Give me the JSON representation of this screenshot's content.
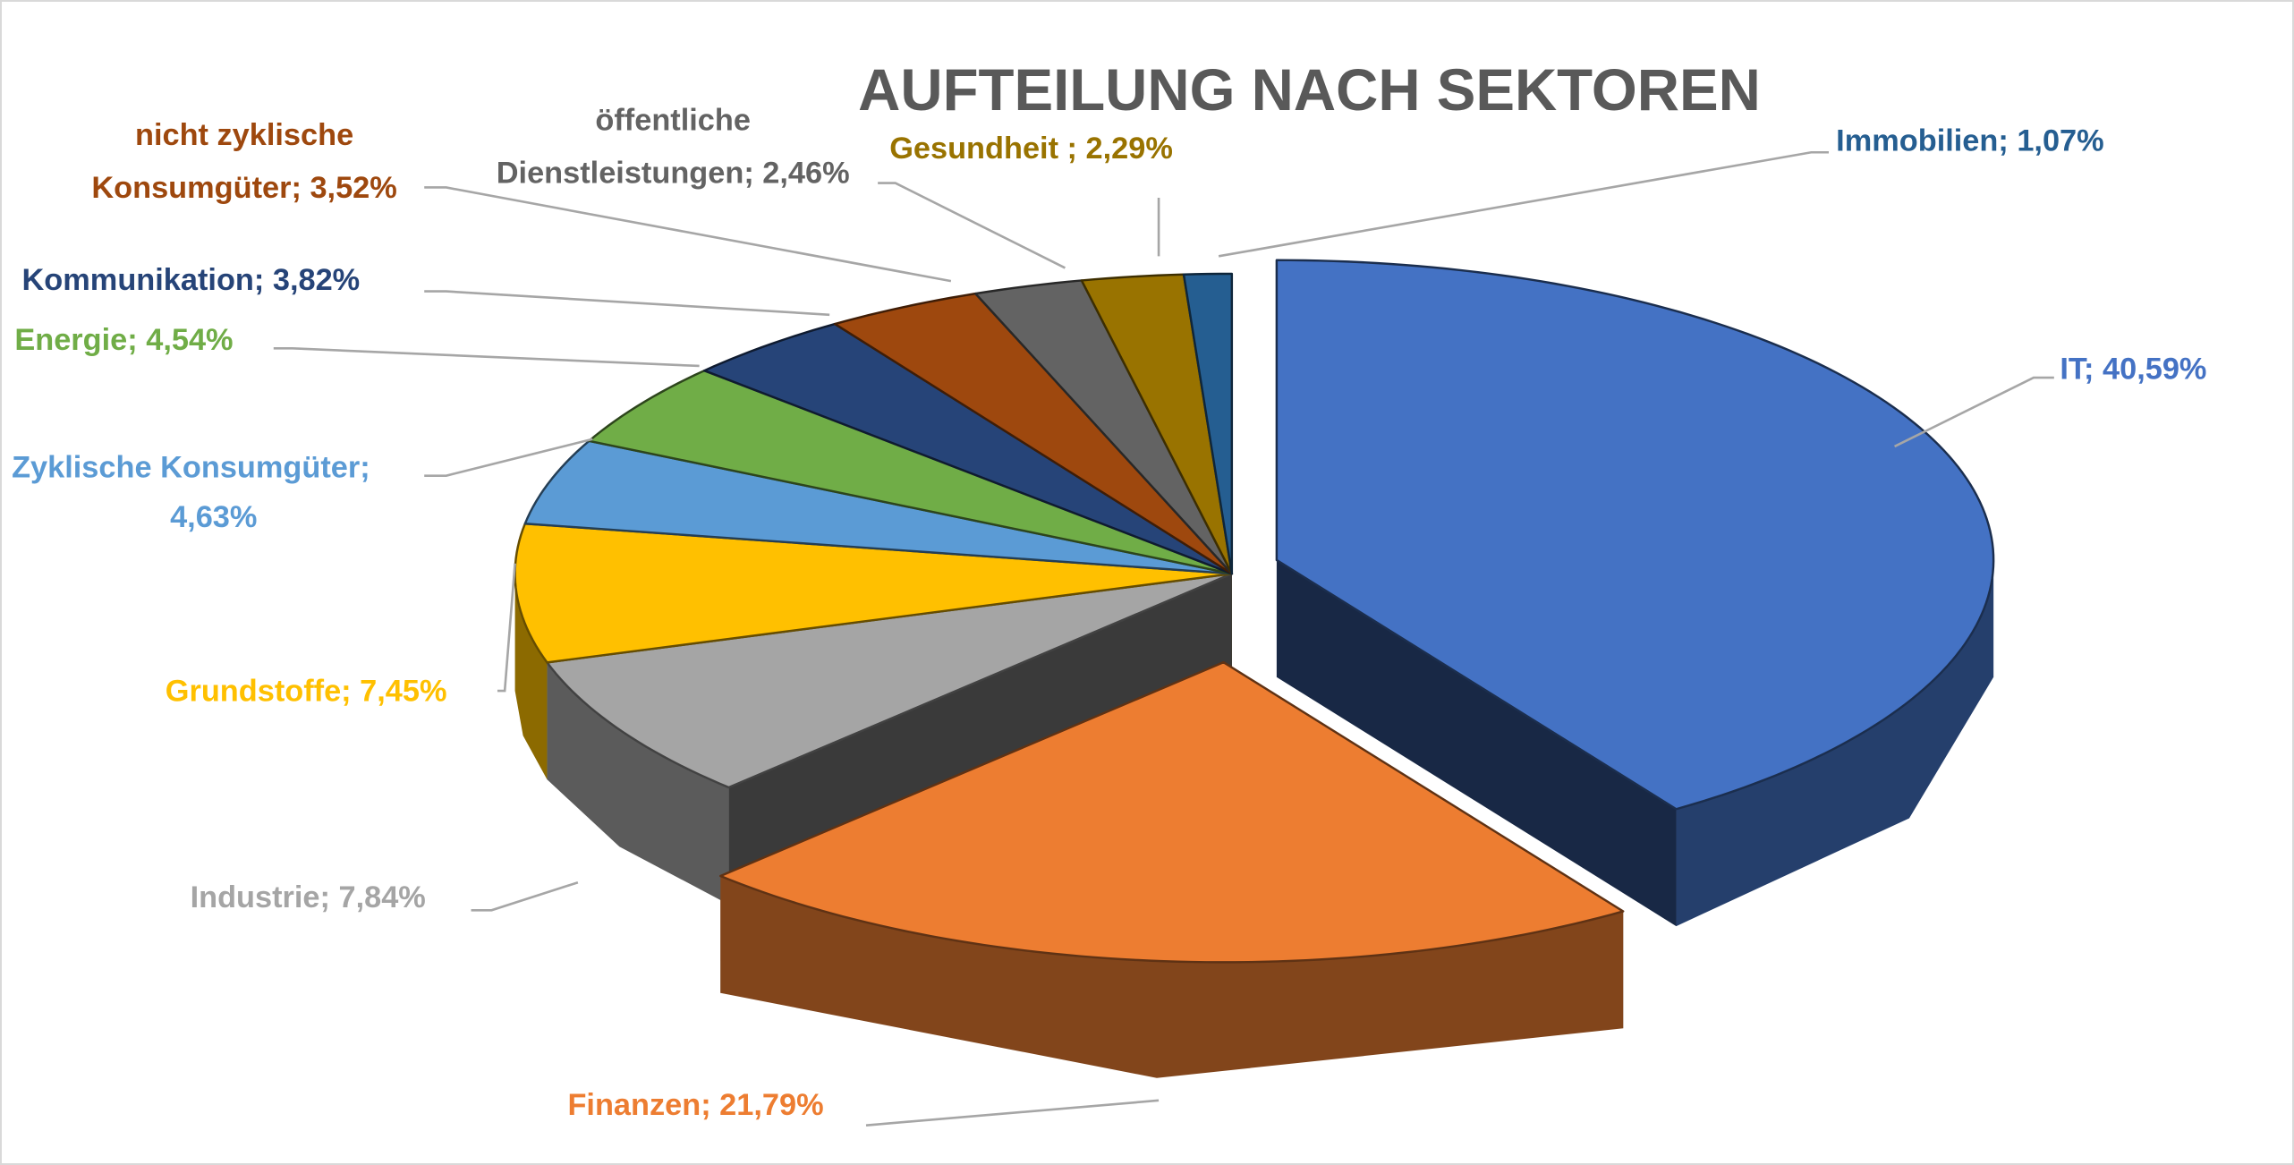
{
  "chart_data": {
    "type": "pie",
    "style": "3d-exploded",
    "title": "AUFTEILUNG NACH SEKTOREN",
    "start": "top",
    "direction": "clockwise",
    "title_color": "#595959",
    "slices": [
      {
        "label": "IT",
        "value": 40.59,
        "text": "IT; 40,59%",
        "color": "#4472C4",
        "exploded": true
      },
      {
        "label": "Finanzen",
        "value": 21.79,
        "text": "Finanzen; 21,79%",
        "color": "#ED7D31",
        "exploded": true
      },
      {
        "label": "Industrie",
        "value": 7.84,
        "text": "Industrie; 7,84%",
        "color": "#A5A5A5",
        "exploded": false
      },
      {
        "label": "Grundstoffe",
        "value": 7.45,
        "text": "Grundstoffe; 7,45%",
        "color": "#FFC000",
        "exploded": false
      },
      {
        "label": "Zyklische Konsumgüter",
        "value": 4.63,
        "text": "Zyklische Konsumgüter;",
        "text2": "4,63%",
        "color": "#5B9BD5",
        "exploded": false
      },
      {
        "label": "Energie",
        "value": 4.54,
        "text": "Energie; 4,54%",
        "color": "#70AD47",
        "exploded": false
      },
      {
        "label": "Kommunikation",
        "value": 3.82,
        "text": "Kommunikation; 3,82%",
        "color": "#264478",
        "exploded": false
      },
      {
        "label": "nicht zyklische Konsumgüter",
        "value": 3.52,
        "text": "nicht zyklische",
        "text2": "Konsumgüter; 3,52%",
        "color": "#9E480E",
        "exploded": false
      },
      {
        "label": "öffentliche Dienstleistungen",
        "value": 2.46,
        "text": "öffentliche",
        "text2": "Dienstleistungen; 2,46%",
        "color": "#636363",
        "exploded": false
      },
      {
        "label": "Gesundheit",
        "value": 2.29,
        "text": "Gesundheit ; 2,29%",
        "color": "#997300",
        "exploded": false
      },
      {
        "label": "Immobilien",
        "value": 1.07,
        "text": "Immobilien; 1,07%",
        "color": "#255E91",
        "exploded": false
      }
    ]
  }
}
